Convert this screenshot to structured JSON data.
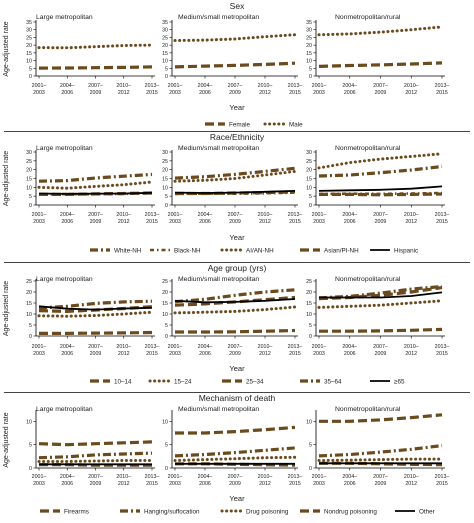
{
  "figure": {
    "x_axis_title": "Year",
    "y_axis_title": "Age-adjusted rate",
    "x_tick_labels": [
      [
        "2001–",
        "2003"
      ],
      [
        "2004–",
        "2006"
      ],
      [
        "2007–",
        "2009"
      ],
      [
        "2010–",
        "2012"
      ],
      [
        "2013–",
        "2015"
      ]
    ],
    "y_ticks": [
      0,
      5,
      10,
      15,
      20,
      25,
      30,
      35
    ],
    "colors": {
      "primary": "#6b4a1e",
      "secondary": "#5a3d17",
      "rule": "#444444",
      "text": "#222222"
    }
  },
  "chart_data": [
    {
      "type": "line",
      "section": "Sex",
      "panels": [
        "Large metropolitan",
        "Medium/small metropolitan",
        "Nonmetropolitan/rural"
      ],
      "x": [
        "2001–2003",
        "2004–2006",
        "2007–2009",
        "2010–2012",
        "2013–2015"
      ],
      "ylim": [
        0,
        35
      ],
      "xlabel": "Year",
      "ylabel": "Age-adjusted rate",
      "series": [
        {
          "name": "Female",
          "style": "dash",
          "values": [
            [
              5.1,
              5.2,
              5.4,
              5.6,
              5.9
            ],
            [
              5.9,
              6.4,
              6.9,
              7.5,
              8.3
            ],
            [
              6.2,
              6.8,
              7.2,
              7.8,
              8.5
            ]
          ]
        },
        {
          "name": "Male",
          "style": "dot",
          "values": [
            [
              18.4,
              18.3,
              19.0,
              19.8,
              20.0
            ],
            [
              23.0,
              23.3,
              24.0,
              25.5,
              26.8
            ],
            [
              26.8,
              27.3,
              28.4,
              30.0,
              31.8
            ]
          ]
        }
      ]
    },
    {
      "type": "line",
      "section": "Race/Ethnicity",
      "panels": [
        "Large metropolitan",
        "Medium/small metropolitan",
        "Nonmetropolitan/rural"
      ],
      "x": [
        "2001–2003",
        "2004–2006",
        "2007–2009",
        "2010–2012",
        "2013–2015"
      ],
      "ylim": [
        0,
        30
      ],
      "xlabel": "Year",
      "ylabel": "Age-adjusted rate",
      "series": [
        {
          "name": "White-NH",
          "style": "dashdot",
          "values": [
            [
              13.5,
              13.8,
              15.3,
              16.3,
              17.3
            ],
            [
              15.2,
              16.0,
              17.3,
              19.0,
              20.8
            ],
            [
              16.4,
              17.0,
              18.3,
              19.8,
              21.8
            ]
          ]
        },
        {
          "name": "Black-NH",
          "style": "dashdot2",
          "values": [
            [
              6.0,
              6.2,
              6.1,
              6.3,
              6.6
            ],
            [
              6.3,
              6.5,
              6.4,
              6.6,
              7.0
            ],
            [
              6.2,
              6.4,
              6.3,
              6.5,
              6.8
            ]
          ]
        },
        {
          "name": "AI/AN-NH",
          "style": "dot",
          "values": [
            [
              10.0,
              9.5,
              10.5,
              11.5,
              13.0
            ],
            [
              13.5,
              14.0,
              15.0,
              17.0,
              19.0
            ],
            [
              21.0,
              24.0,
              26.0,
              27.5,
              29.0
            ]
          ]
        },
        {
          "name": "Asian/PI-NH",
          "style": "dash",
          "values": [
            [
              6.0,
              6.0,
              6.3,
              6.5,
              6.8
            ],
            [
              6.5,
              6.5,
              6.8,
              7.0,
              7.5
            ],
            [
              6.0,
              6.0,
              5.8,
              6.0,
              6.2
            ]
          ]
        },
        {
          "name": "Hispanic",
          "style": "solid",
          "values": [
            [
              6.5,
              6.3,
              6.4,
              6.5,
              6.9
            ],
            [
              7.0,
              6.8,
              7.0,
              7.5,
              8.0
            ],
            [
              8.0,
              8.3,
              8.6,
              9.2,
              10.5
            ]
          ]
        }
      ]
    },
    {
      "type": "line",
      "section": "Age group (yrs)",
      "panels": [
        "Large metropolitan",
        "Medium/small metropolitan",
        "Nonmetropolitan/rural"
      ],
      "x": [
        "2001–2003",
        "2004–2006",
        "2007–2009",
        "2010–2012",
        "2013–2015"
      ],
      "ylim": [
        0,
        25
      ],
      "xlabel": "Year",
      "ylabel": "Age-adjusted rate",
      "series": [
        {
          "name": "10–14",
          "style": "dash",
          "values": [
            [
              1.2,
              1.2,
              1.3,
              1.4,
              1.6
            ],
            [
              1.8,
              1.8,
              1.9,
              2.2,
              2.5
            ],
            [
              2.2,
              2.2,
              2.3,
              2.6,
              3.0
            ]
          ]
        },
        {
          "name": "15–24",
          "style": "dot",
          "values": [
            [
              9.2,
              9.0,
              9.3,
              10.0,
              10.8
            ],
            [
              10.5,
              10.8,
              11.2,
              12.0,
              13.2
            ],
            [
              13.0,
              13.5,
              14.0,
              15.0,
              16.0
            ]
          ]
        },
        {
          "name": "25–34",
          "style": "dash",
          "values": [
            [
              11.5,
              11.2,
              11.8,
              12.5,
              13.3
            ],
            [
              14.0,
              14.6,
              15.5,
              16.5,
              17.5
            ],
            [
              17.0,
              17.5,
              18.5,
              20.0,
              22.0
            ]
          ]
        },
        {
          "name": "35–64",
          "style": "dashdot",
          "values": [
            [
              12.7,
              13.5,
              14.8,
              15.5,
              15.8
            ],
            [
              15.6,
              16.7,
              18.5,
              20.0,
              21.0
            ],
            [
              17.3,
              18.0,
              19.5,
              21.3,
              22.5
            ]
          ]
        },
        {
          "name": "≥65",
          "style": "solid",
          "values": [
            [
              13.5,
              12.4,
              12.0,
              12.5,
              12.8
            ],
            [
              16.0,
              15.3,
              15.5,
              16.0,
              16.8
            ],
            [
              17.5,
              17.5,
              17.5,
              18.2,
              19.8
            ]
          ]
        }
      ]
    },
    {
      "type": "line",
      "section": "Mechanism of death",
      "panels": [
        "Large metropolitan",
        "Medium/small metropolitan",
        "Nonmetropolitan/rural"
      ],
      "x": [
        "2001–2003",
        "2004–2006",
        "2007–2009",
        "2010–2012",
        "2013–2015"
      ],
      "ylim": [
        0,
        12
      ],
      "xlabel": "Year",
      "ylabel": "Age-adjusted rate",
      "series": [
        {
          "name": "Firearms",
          "style": "dash",
          "values": [
            [
              5.2,
              5.0,
              5.2,
              5.4,
              5.6
            ],
            [
              7.5,
              7.5,
              7.8,
              8.2,
              8.7
            ],
            [
              10.0,
              10.0,
              10.3,
              10.8,
              11.4
            ]
          ]
        },
        {
          "name": "Hanging/suffocation",
          "style": "dashdot",
          "values": [
            [
              2.2,
              2.4,
              2.8,
              3.0,
              3.2
            ],
            [
              2.6,
              2.9,
              3.3,
              3.8,
              4.3
            ],
            [
              2.6,
              2.9,
              3.4,
              4.0,
              4.8
            ]
          ]
        },
        {
          "name": "Drug poisoning",
          "style": "dot",
          "values": [
            [
              1.4,
              1.4,
              1.5,
              1.6,
              1.6
            ],
            [
              1.6,
              1.8,
              2.0,
              2.2,
              2.3
            ],
            [
              1.6,
              1.7,
              1.8,
              1.9,
              1.9
            ]
          ]
        },
        {
          "name": "Nondrug poisoning",
          "style": "dash",
          "values": [
            [
              0.7,
              0.7,
              0.6,
              0.6,
              0.6
            ],
            [
              0.9,
              0.9,
              0.8,
              0.7,
              0.6
            ],
            [
              1.0,
              1.0,
              0.9,
              0.8,
              0.7
            ]
          ]
        },
        {
          "name": "Other",
          "style": "solid",
          "values": [
            [
              0.8,
              0.8,
              0.8,
              0.8,
              0.8
            ],
            [
              0.9,
              0.9,
              0.9,
              0.9,
              0.9
            ],
            [
              1.0,
              1.0,
              1.0,
              1.0,
              1.0
            ]
          ]
        }
      ]
    }
  ]
}
